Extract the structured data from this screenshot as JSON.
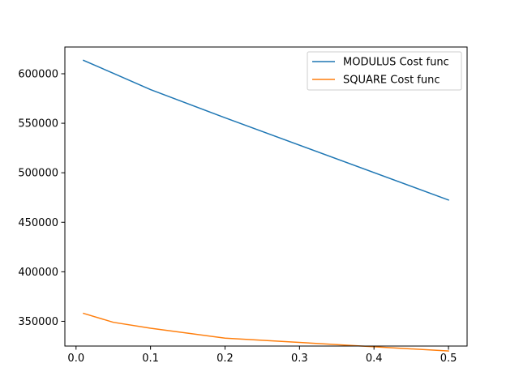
{
  "chart_data": {
    "type": "line",
    "title": "",
    "xlabel": "",
    "ylabel": "",
    "xlim": [
      -0.015,
      0.525
    ],
    "ylim": [
      325000,
      627000
    ],
    "xticks": [
      0.0,
      0.1,
      0.2,
      0.3,
      0.4,
      0.5
    ],
    "xtick_labels": [
      "0.0",
      "0.1",
      "0.2",
      "0.3",
      "0.4",
      "0.5"
    ],
    "yticks": [
      350000,
      400000,
      450000,
      500000,
      550000,
      600000
    ],
    "ytick_labels": [
      "350000",
      "400000",
      "450000",
      "500000",
      "550000",
      "600000"
    ],
    "grid": false,
    "legend_position": "top-right",
    "series": [
      {
        "name": "MODULUS Cost func",
        "color": "#1f77b4",
        "x": [
          0.01,
          0.05,
          0.1,
          0.2,
          0.5
        ],
        "y": [
          613500,
          600500,
          584000,
          555500,
          472500
        ]
      },
      {
        "name": "SQUARE Cost func",
        "color": "#ff7f0e",
        "x": [
          0.01,
          0.05,
          0.1,
          0.2,
          0.5
        ],
        "y": [
          358000,
          349000,
          343000,
          333000,
          320000
        ]
      }
    ]
  }
}
